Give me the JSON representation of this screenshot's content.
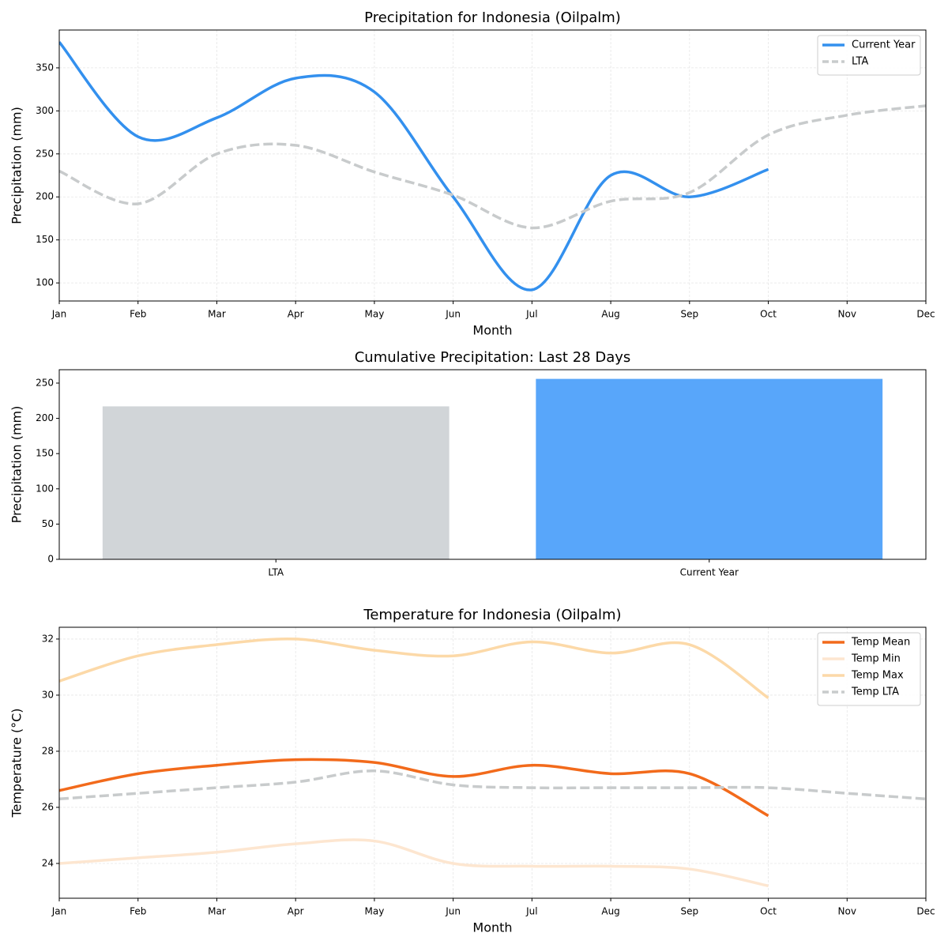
{
  "chart_data": [
    {
      "type": "line",
      "title": "Precipitation for Indonesia (Oilpalm)",
      "xlabel": "Month",
      "ylabel": "Precipitation (mm)",
      "categories": [
        "Jan",
        "Feb",
        "Mar",
        "Apr",
        "May",
        "Jun",
        "Jul",
        "Aug",
        "Sep",
        "Oct",
        "Nov",
        "Dec"
      ],
      "series": [
        {
          "name": "Current Year",
          "color": "#3390ee",
          "linestyle": "solid",
          "values": [
            380,
            270,
            292,
            338,
            322,
            200,
            92,
            225,
            200,
            232,
            null,
            null
          ]
        },
        {
          "name": "LTA",
          "color": "#c8cbcc",
          "linestyle": "dashed",
          "values": [
            230,
            192,
            250,
            260,
            229,
            202,
            164,
            195,
            205,
            272,
            295,
            306
          ]
        }
      ],
      "ylim": [
        79,
        394
      ],
      "yticks": [
        100,
        150,
        200,
        250,
        300,
        350
      ],
      "grid": true,
      "legend": "upper right"
    },
    {
      "type": "bar",
      "title": "Cumulative Precipitation: Last 28 Days",
      "ylabel": "Precipitation (mm)",
      "categories": [
        "LTA",
        "Current Year"
      ],
      "values": [
        217,
        256
      ],
      "colors": [
        "#d1d5d8",
        "#58a6fa"
      ],
      "ylim": [
        0,
        269
      ],
      "yticks": [
        0,
        50,
        100,
        150,
        200,
        250
      ],
      "grid": false
    },
    {
      "type": "line",
      "title": "Temperature for Indonesia (Oilpalm)",
      "xlabel": "Month",
      "ylabel": "Temperature (°C)",
      "categories": [
        "Jan",
        "Feb",
        "Mar",
        "Apr",
        "May",
        "Jun",
        "Jul",
        "Aug",
        "Sep",
        "Oct",
        "Nov",
        "Dec"
      ],
      "series": [
        {
          "name": "Temp Mean",
          "color": "#f26a1b",
          "linestyle": "solid",
          "values": [
            26.6,
            27.2,
            27.5,
            27.7,
            27.6,
            27.1,
            27.5,
            27.2,
            27.2,
            25.7,
            null,
            null
          ]
        },
        {
          "name": "Temp Min",
          "color": "#fde6d0",
          "linestyle": "solid",
          "values": [
            24.0,
            24.2,
            24.4,
            24.7,
            24.8,
            24.0,
            23.9,
            23.9,
            23.8,
            23.2,
            null,
            null
          ]
        },
        {
          "name": "Temp Max",
          "color": "#fcd9a8",
          "linestyle": "solid",
          "values": [
            30.5,
            31.4,
            31.8,
            32.0,
            31.6,
            31.4,
            31.9,
            31.5,
            31.8,
            29.9,
            null,
            null
          ]
        },
        {
          "name": "Temp LTA",
          "color": "#c8cbcc",
          "linestyle": "dashed",
          "values": [
            26.3,
            26.5,
            26.7,
            26.9,
            27.3,
            26.8,
            26.7,
            26.7,
            26.7,
            26.7,
            26.5,
            26.3
          ]
        }
      ],
      "ylim": [
        22.76,
        32.42
      ],
      "yticks": [
        24,
        26,
        28,
        30,
        32
      ],
      "grid": true,
      "legend": "upper right"
    }
  ]
}
